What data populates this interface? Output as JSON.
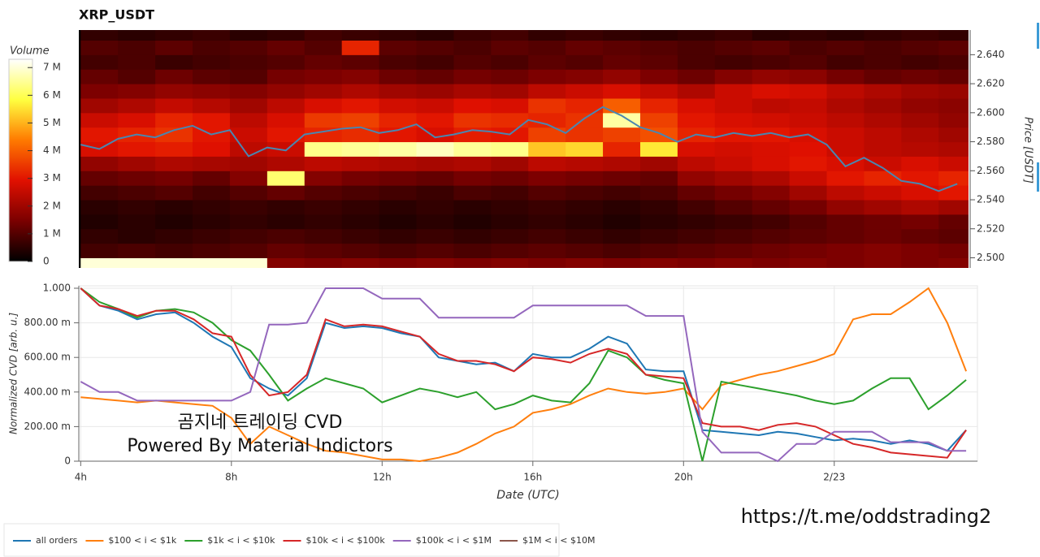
{
  "title": "XRP_USDT",
  "watermark": [
    "곰지네 트레이딩 CVD",
    "Powered By Material Indictors"
  ],
  "link": "https://t.me/oddstrading2",
  "chart_data": [
    {
      "type": "heatmap",
      "ylabel": "Price [USDT]",
      "colorbar_title": "Volume",
      "colorscale": [
        "#000000",
        "#7a0000",
        "#e01000",
        "#ff7a00",
        "#ffff40",
        "#ffffff"
      ],
      "zlim": [
        0,
        7.3
      ],
      "colorbar_ticks": [
        {
          "value": 0,
          "label": "0"
        },
        {
          "value": 1,
          "label": "1 M"
        },
        {
          "value": 2,
          "label": "2 M"
        },
        {
          "value": 3,
          "label": "3 M"
        },
        {
          "value": 4,
          "label": "4 M"
        },
        {
          "value": 5,
          "label": "5 M"
        },
        {
          "value": 6,
          "label": "6 M"
        },
        {
          "value": 7,
          "label": "7 M"
        }
      ],
      "xlim": [
        3.95,
        27.8
      ],
      "ylim": [
        2.493,
        2.657
      ],
      "yticks": [
        {
          "value": 2.5,
          "label": "2.500"
        },
        {
          "value": 2.52,
          "label": "2.520"
        },
        {
          "value": 2.54,
          "label": "2.540"
        },
        {
          "value": 2.56,
          "label": "2.560"
        },
        {
          "value": 2.58,
          "label": "2.580"
        },
        {
          "value": 2.6,
          "label": "2.600"
        },
        {
          "value": 2.62,
          "label": "2.620"
        },
        {
          "value": 2.64,
          "label": "2.640"
        }
      ],
      "xbins": [
        4,
        5,
        6,
        7,
        8,
        9,
        10,
        11,
        12,
        13,
        14,
        15,
        16,
        17,
        18,
        19,
        20,
        21,
        22,
        23,
        24,
        25,
        26,
        27,
        28
      ],
      "ybins": [
        2.49,
        2.5,
        2.51,
        2.52,
        2.53,
        2.54,
        2.55,
        2.56,
        2.57,
        2.58,
        2.59,
        2.6,
        2.61,
        2.62,
        2.63,
        2.64,
        2.65,
        2.66
      ],
      "z": [
        [
          7.0,
          7.0,
          7.0,
          7.0,
          7.0,
          1.6,
          1.5,
          1.6,
          1.5,
          1.6,
          1.5,
          1.6,
          1.5,
          1.6,
          1.5,
          1.6,
          1.5,
          1.6,
          1.5,
          1.6,
          1.5,
          1.6,
          1.5,
          1.6
        ],
        [
          0.8,
          0.9,
          0.8,
          0.9,
          1.0,
          1.2,
          1.1,
          1.0,
          0.9,
          1.0,
          0.9,
          1.0,
          1.1,
          1.0,
          0.9,
          1.0,
          1.1,
          1.2,
          1.3,
          1.4,
          1.5,
          1.6,
          1.5,
          1.4
        ],
        [
          0.6,
          0.5,
          0.6,
          0.7,
          0.8,
          0.9,
          0.8,
          0.7,
          0.6,
          0.7,
          0.6,
          0.7,
          0.8,
          0.7,
          0.6,
          0.7,
          0.8,
          0.9,
          1.0,
          1.1,
          1.2,
          1.3,
          1.2,
          1.1
        ],
        [
          0.4,
          0.5,
          0.4,
          0.5,
          0.6,
          0.5,
          0.6,
          0.5,
          0.4,
          0.5,
          0.4,
          0.5,
          0.6,
          0.5,
          0.4,
          0.5,
          0.6,
          0.7,
          0.8,
          1.0,
          1.2,
          1.3,
          1.4,
          1.2
        ],
        [
          0.5,
          0.6,
          0.5,
          0.6,
          0.7,
          0.6,
          0.7,
          0.6,
          0.5,
          0.6,
          0.5,
          0.6,
          0.7,
          0.6,
          0.5,
          0.6,
          0.8,
          1.0,
          1.2,
          1.4,
          1.8,
          2.0,
          2.2,
          2.0
        ],
        [
          0.8,
          0.9,
          1.0,
          0.8,
          1.0,
          1.2,
          1.0,
          0.9,
          0.8,
          0.7,
          0.9,
          0.8,
          1.0,
          0.9,
          0.8,
          0.9,
          1.2,
          1.4,
          1.6,
          2.0,
          2.4,
          2.6,
          2.8,
          3.0
        ],
        [
          1.2,
          1.3,
          1.4,
          1.2,
          1.6,
          6.2,
          1.6,
          1.4,
          1.3,
          1.2,
          1.4,
          1.3,
          1.5,
          1.4,
          1.3,
          1.2,
          1.8,
          2.0,
          2.2,
          2.6,
          3.0,
          3.2,
          3.0,
          3.2
        ],
        [
          1.8,
          2.0,
          2.2,
          2.1,
          2.0,
          2.2,
          2.4,
          2.3,
          2.2,
          2.1,
          2.2,
          2.0,
          2.4,
          2.3,
          2.2,
          2.0,
          2.4,
          2.6,
          2.8,
          3.0,
          2.8,
          2.6,
          2.8,
          2.6
        ],
        [
          2.8,
          3.0,
          3.1,
          2.9,
          2.4,
          2.6,
          6.4,
          6.5,
          6.6,
          6.8,
          6.5,
          6.4,
          5.2,
          5.4,
          3.2,
          5.6,
          2.8,
          2.7,
          2.8,
          2.9,
          2.6,
          2.4,
          2.3,
          2.2
        ],
        [
          3.0,
          3.2,
          3.4,
          3.0,
          2.6,
          3.0,
          3.2,
          3.3,
          3.0,
          2.8,
          3.1,
          3.0,
          3.6,
          3.4,
          3.6,
          3.8,
          3.2,
          3.0,
          3.0,
          2.8,
          2.6,
          2.4,
          2.2,
          2.0
        ],
        [
          2.6,
          2.8,
          3.2,
          3.0,
          2.4,
          2.8,
          3.5,
          3.6,
          3.2,
          3.0,
          3.4,
          3.3,
          3.2,
          3.4,
          6.6,
          3.6,
          3.0,
          2.8,
          2.7,
          2.6,
          2.4,
          2.2,
          2.0,
          1.8
        ],
        [
          2.0,
          2.2,
          2.5,
          2.3,
          2.0,
          2.4,
          2.8,
          3.0,
          2.7,
          2.6,
          2.9,
          2.8,
          3.4,
          3.2,
          4.0,
          3.2,
          2.8,
          2.6,
          2.4,
          2.5,
          2.2,
          2.0,
          1.8,
          1.7
        ],
        [
          1.5,
          1.6,
          1.8,
          1.7,
          1.6,
          1.8,
          2.0,
          2.2,
          2.0,
          1.9,
          2.1,
          2.0,
          2.4,
          2.6,
          2.8,
          2.5,
          2.2,
          2.6,
          2.8,
          2.7,
          2.4,
          2.2,
          2.0,
          1.9
        ],
        [
          1.2,
          1.0,
          1.3,
          1.1,
          1.0,
          1.4,
          1.5,
          1.6,
          1.3,
          1.2,
          1.4,
          1.3,
          1.5,
          1.6,
          1.8,
          1.5,
          1.3,
          1.6,
          1.8,
          1.7,
          1.4,
          1.2,
          1.3,
          1.2
        ],
        [
          0.8,
          0.9,
          0.7,
          0.8,
          0.9,
          1.0,
          1.2,
          1.1,
          0.9,
          0.8,
          1.0,
          0.9,
          1.1,
          1.0,
          1.2,
          1.1,
          0.9,
          0.8,
          0.9,
          1.0,
          0.8,
          0.9,
          0.8,
          0.9
        ],
        [
          1.0,
          0.9,
          1.1,
          0.9,
          1.0,
          1.2,
          1.0,
          3.2,
          1.1,
          1.0,
          0.9,
          1.1,
          1.0,
          1.2,
          1.1,
          1.0,
          0.9,
          1.0,
          1.1,
          0.9,
          1.0,
          0.9,
          1.0,
          1.1
        ],
        [
          0.6,
          0.5,
          0.6,
          0.7,
          0.5,
          0.6,
          0.8,
          0.7,
          0.6,
          0.5,
          0.7,
          0.8,
          0.6,
          0.7,
          0.6,
          0.5,
          0.6,
          0.7,
          0.5,
          0.6,
          0.5,
          0.6,
          0.7,
          0.6
        ]
      ],
      "price": {
        "color": "#4a86b0",
        "x": [
          4,
          4.5,
          5,
          5.5,
          6,
          6.5,
          7,
          7.5,
          8,
          8.5,
          9,
          9.5,
          10,
          10.5,
          11,
          11.5,
          12,
          12.5,
          13,
          13.5,
          14,
          14.5,
          15,
          15.5,
          16,
          16.5,
          17,
          17.5,
          18,
          18.5,
          19,
          19.5,
          20,
          20.5,
          21,
          21.5,
          22,
          22.5,
          23,
          23.5,
          24,
          24.5,
          25,
          25.5,
          26,
          26.5,
          27,
          27.5
        ],
        "values": [
          2.578,
          2.575,
          2.582,
          2.585,
          2.583,
          2.588,
          2.591,
          2.585,
          2.588,
          2.57,
          2.576,
          2.574,
          2.585,
          2.587,
          2.589,
          2.59,
          2.586,
          2.588,
          2.592,
          2.583,
          2.585,
          2.588,
          2.587,
          2.585,
          2.595,
          2.592,
          2.586,
          2.596,
          2.604,
          2.598,
          2.59,
          2.586,
          2.58,
          2.585,
          2.583,
          2.586,
          2.584,
          2.586,
          2.583,
          2.585,
          2.578,
          2.563,
          2.569,
          2.562,
          2.553,
          2.551,
          2.546,
          2.551
        ]
      }
    },
    {
      "type": "line",
      "xlabel": "Date (UTC)",
      "ylabel": "Normalized CVD [arb. u.]",
      "grid": true,
      "xlim": [
        3.95,
        27.8
      ],
      "xticks": [
        {
          "value": 4,
          "label": "4h"
        },
        {
          "value": 8,
          "label": "8h"
        },
        {
          "value": 12,
          "label": "12h"
        },
        {
          "value": 16,
          "label": "16h"
        },
        {
          "value": 20,
          "label": "20h"
        },
        {
          "value": 24,
          "label": "2/23"
        }
      ],
      "ylim": [
        0,
        1
      ],
      "yticks": [
        0,
        {
          "value": 0.2,
          "label": "200.00 m"
        },
        {
          "value": 0.4,
          "label": "400.00 m"
        },
        {
          "value": 0.6,
          "label": "600.00 m"
        },
        {
          "value": 0.8,
          "label": "800.00 m"
        },
        {
          "value": 1,
          "label": "1.000"
        }
      ],
      "x": [
        4,
        4.5,
        5,
        5.5,
        6,
        6.5,
        7,
        7.5,
        8,
        8.5,
        9,
        9.5,
        10,
        10.5,
        11,
        11.5,
        12,
        12.5,
        13,
        13.5,
        14,
        14.5,
        15,
        15.5,
        16,
        16.5,
        17,
        17.5,
        18,
        18.5,
        19,
        19.5,
        20,
        20.5,
        21,
        21.5,
        22,
        22.5,
        23,
        23.5,
        24,
        24.5,
        25,
        25.5,
        26,
        26.5,
        27,
        27.5
      ],
      "series": [
        {
          "name": "all orders",
          "color": "#1f77b4",
          "values": [
            1.0,
            0.9,
            0.87,
            0.82,
            0.85,
            0.86,
            0.8,
            0.72,
            0.66,
            0.48,
            0.42,
            0.38,
            0.48,
            0.8,
            0.77,
            0.78,
            0.77,
            0.74,
            0.72,
            0.6,
            0.58,
            0.56,
            0.57,
            0.52,
            0.62,
            0.6,
            0.6,
            0.65,
            0.72,
            0.68,
            0.53,
            0.52,
            0.52,
            0.18,
            0.17,
            0.16,
            0.15,
            0.17,
            0.16,
            0.14,
            0.12,
            0.13,
            0.12,
            0.1,
            0.12,
            0.1,
            0.06,
            0.18
          ]
        },
        {
          "name": "$100 < i < $1k",
          "color": "#ff7f0e",
          "values": [
            0.37,
            0.36,
            0.35,
            0.34,
            0.35,
            0.34,
            0.33,
            0.32,
            0.25,
            0.1,
            0.2,
            0.15,
            0.1,
            0.06,
            0.05,
            0.03,
            0.01,
            0.01,
            0.0,
            0.02,
            0.05,
            0.1,
            0.16,
            0.2,
            0.28,
            0.3,
            0.33,
            0.38,
            0.42,
            0.4,
            0.39,
            0.4,
            0.42,
            0.3,
            0.44,
            0.47,
            0.5,
            0.52,
            0.55,
            0.58,
            0.62,
            0.82,
            0.85,
            0.85,
            0.92,
            1.0,
            0.8,
            0.52
          ]
        },
        {
          "name": "$1k < i < $10k",
          "color": "#2ca02c",
          "values": [
            1.0,
            0.92,
            0.88,
            0.83,
            0.87,
            0.88,
            0.86,
            0.8,
            0.7,
            0.64,
            0.5,
            0.35,
            0.42,
            0.48,
            0.45,
            0.42,
            0.34,
            0.38,
            0.42,
            0.4,
            0.37,
            0.4,
            0.3,
            0.33,
            0.38,
            0.35,
            0.34,
            0.45,
            0.64,
            0.6,
            0.5,
            0.47,
            0.45,
            0.0,
            0.46,
            0.44,
            0.42,
            0.4,
            0.38,
            0.35,
            0.33,
            0.35,
            0.42,
            0.48,
            0.48,
            0.3,
            0.38,
            0.47
          ]
        },
        {
          "name": "$10k < i < $100k",
          "color": "#d62728",
          "values": [
            1.0,
            0.9,
            0.88,
            0.84,
            0.87,
            0.87,
            0.82,
            0.74,
            0.72,
            0.5,
            0.38,
            0.4,
            0.5,
            0.82,
            0.78,
            0.79,
            0.78,
            0.75,
            0.72,
            0.62,
            0.58,
            0.58,
            0.56,
            0.52,
            0.6,
            0.59,
            0.57,
            0.62,
            0.65,
            0.62,
            0.5,
            0.49,
            0.48,
            0.22,
            0.2,
            0.2,
            0.18,
            0.21,
            0.22,
            0.2,
            0.15,
            0.1,
            0.08,
            0.05,
            0.04,
            0.03,
            0.02,
            0.18
          ]
        },
        {
          "name": "$100k < i < $1M",
          "color": "#9467bd",
          "values": [
            0.46,
            0.4,
            0.4,
            0.35,
            0.35,
            0.35,
            0.35,
            0.35,
            0.35,
            0.4,
            0.79,
            0.79,
            0.8,
            1.0,
            1.0,
            1.0,
            0.94,
            0.94,
            0.94,
            0.83,
            0.83,
            0.83,
            0.83,
            0.83,
            0.9,
            0.9,
            0.9,
            0.9,
            0.9,
            0.9,
            0.84,
            0.84,
            0.84,
            0.17,
            0.05,
            0.05,
            0.05,
            0.0,
            0.1,
            0.1,
            0.17,
            0.17,
            0.17,
            0.11,
            0.11,
            0.11,
            0.06,
            0.06
          ]
        },
        {
          "name": "$1M < i < $10M",
          "color": "#8c564b",
          "values": [
            null,
            null,
            null,
            null,
            null,
            null,
            null,
            null,
            null,
            null,
            null,
            null,
            null,
            null,
            null,
            null,
            null,
            null,
            null,
            null,
            null,
            null,
            null,
            null,
            null,
            null,
            null,
            null,
            null,
            null,
            null,
            null,
            null,
            null,
            null,
            null,
            null,
            null,
            null,
            null,
            null,
            null,
            null,
            null,
            null,
            null,
            null,
            null
          ]
        }
      ]
    }
  ]
}
